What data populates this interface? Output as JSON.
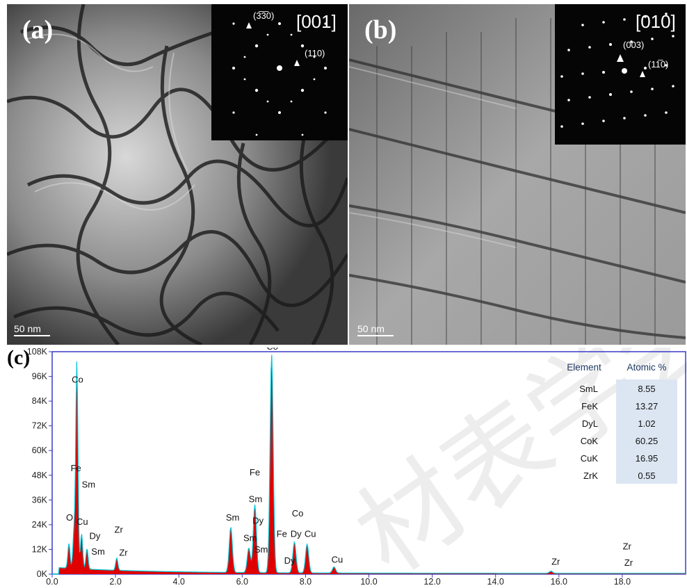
{
  "panel_a": {
    "label": "(a)",
    "zone_axis": "[001]",
    "spots": [
      "(3̅3̅0)",
      "(110)"
    ],
    "scale_bar": "50 nm"
  },
  "panel_b": {
    "label": "(b)",
    "zone_axis": "[010]",
    "spots": [
      "(003)",
      "(11̅0)"
    ],
    "scale_bar": "50 nm"
  },
  "panel_c": {
    "label": "(c)",
    "table": {
      "headers": [
        "Element",
        "Atomic %"
      ],
      "rows": [
        {
          "element": "SmL",
          "value": "8.55"
        },
        {
          "element": "FeK",
          "value": "13.27"
        },
        {
          "element": "DyL",
          "value": "1.02"
        },
        {
          "element": "CoK",
          "value": "60.25"
        },
        {
          "element": "CuK",
          "value": "16.95"
        },
        {
          "element": "ZrK",
          "value": "0.55"
        }
      ]
    },
    "watermark": "材表学会"
  },
  "chart_data": {
    "type": "area",
    "xlim": [
      0,
      20
    ],
    "ylim": [
      0,
      108000
    ],
    "xticks": [
      "0.0",
      "2.0",
      "4.0",
      "6.0",
      "8.0",
      "10.0",
      "12.0",
      "14.0",
      "16.0",
      "18.0"
    ],
    "yticks": [
      "0K",
      "12K",
      "24K",
      "36K",
      "48K",
      "60K",
      "72K",
      "84K",
      "96K",
      "108K"
    ],
    "colors": {
      "fill": "#e00000",
      "outline": "#00c8d8",
      "frame": "#3a3ac8"
    },
    "peaks": [
      {
        "x": 0.53,
        "y": 12000
      },
      {
        "x": 0.69,
        "y": 18000
      },
      {
        "x": 0.78,
        "y": 100000
      },
      {
        "x": 0.93,
        "y": 17000
      },
      {
        "x": 1.1,
        "y": 10000
      },
      {
        "x": 2.04,
        "y": 6000
      },
      {
        "x": 5.64,
        "y": 22000
      },
      {
        "x": 6.21,
        "y": 12000
      },
      {
        "x": 6.4,
        "y": 33000
      },
      {
        "x": 6.93,
        "y": 106000
      },
      {
        "x": 7.65,
        "y": 15000
      },
      {
        "x": 8.05,
        "y": 14000
      },
      {
        "x": 8.9,
        "y": 3000
      },
      {
        "x": 15.75,
        "y": 1000
      }
    ],
    "annotations": [
      {
        "text": "Co",
        "x": 0.8,
        "y": 93000
      },
      {
        "text": "Fe",
        "x": 0.75,
        "y": 50000
      },
      {
        "text": "Sm",
        "x": 1.15,
        "y": 42000
      },
      {
        "text": "O",
        "x": 0.55,
        "y": 26000
      },
      {
        "text": "Cu",
        "x": 0.95,
        "y": 24000
      },
      {
        "text": "Dy",
        "x": 1.35,
        "y": 17000
      },
      {
        "text": "Sm",
        "x": 1.45,
        "y": 9500
      },
      {
        "text": "Zr",
        "x": 2.1,
        "y": 20000
      },
      {
        "text": "Zr",
        "x": 2.25,
        "y": 9000
      },
      {
        "text": "Co",
        "x": 6.95,
        "y": 109000
      },
      {
        "text": "Fe",
        "x": 6.4,
        "y": 48000
      },
      {
        "text": "Sm",
        "x": 6.42,
        "y": 35000
      },
      {
        "text": "Dy",
        "x": 6.5,
        "y": 24500
      },
      {
        "text": "Sm",
        "x": 5.7,
        "y": 26000
      },
      {
        "text": "Sm",
        "x": 6.25,
        "y": 16000
      },
      {
        "text": "Sm",
        "x": 6.6,
        "y": 10500
      },
      {
        "text": "Fe",
        "x": 7.25,
        "y": 18000
      },
      {
        "text": "Dy",
        "x": 7.5,
        "y": 5000
      },
      {
        "text": "Co",
        "x": 7.75,
        "y": 28000
      },
      {
        "text": "Dy",
        "x": 7.7,
        "y": 18000
      },
      {
        "text": "Cu",
        "x": 8.15,
        "y": 18000
      },
      {
        "text": "Cu",
        "x": 9.0,
        "y": 5500
      },
      {
        "text": "Zr",
        "x": 15.9,
        "y": 4500
      },
      {
        "text": "Zr",
        "x": 18.15,
        "y": 12000
      },
      {
        "text": "Zr",
        "x": 18.2,
        "y": 4000
      }
    ]
  }
}
